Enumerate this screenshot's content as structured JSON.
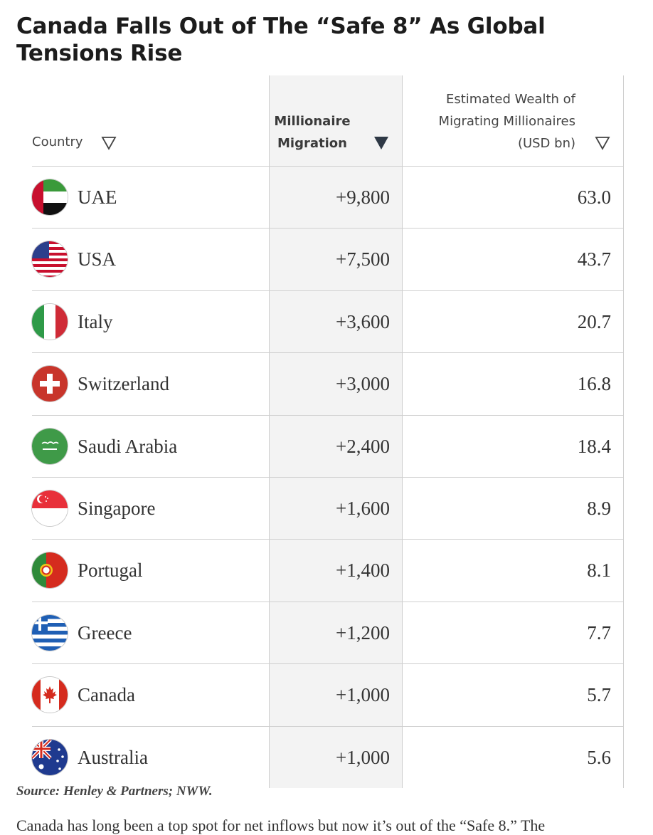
{
  "title": "Canada Falls Out of The “Safe 8” As Global Tensions Rise",
  "table": {
    "headers": {
      "country": "Country",
      "migration": "Millionaire Migration",
      "wealth": "Estimated Wealth of Migrating Millionaires (USD bn)"
    },
    "sort_icons": {
      "country": "▽",
      "migration": "▼",
      "wealth": "▽"
    },
    "rows": [
      {
        "country": "UAE",
        "migration": "+9,800",
        "wealth": "63.0",
        "flag": "uae-flag-icon"
      },
      {
        "country": "USA",
        "migration": "+7,500",
        "wealth": "43.7",
        "flag": "usa-flag-icon"
      },
      {
        "country": "Italy",
        "migration": "+3,600",
        "wealth": "20.7",
        "flag": "italy-flag-icon"
      },
      {
        "country": "Switzerland",
        "migration": "+3,000",
        "wealth": "16.8",
        "flag": "switzerland-flag-icon"
      },
      {
        "country": "Saudi Arabia",
        "migration": "+2,400",
        "wealth": "18.4",
        "flag": "saudi-arabia-flag-icon"
      },
      {
        "country": "Singapore",
        "migration": "+1,600",
        "wealth": "8.9",
        "flag": "singapore-flag-icon"
      },
      {
        "country": "Portugal",
        "migration": "+1,400",
        "wealth": "8.1",
        "flag": "portugal-flag-icon"
      },
      {
        "country": "Greece",
        "migration": "+1,200",
        "wealth": "7.7",
        "flag": "greece-flag-icon"
      },
      {
        "country": "Canada",
        "migration": "+1,000",
        "wealth": "5.7",
        "flag": "canada-flag-icon"
      },
      {
        "country": "Australia",
        "migration": "+1,000",
        "wealth": "5.6",
        "flag": "australia-flag-icon"
      }
    ]
  },
  "source": "Source: Henley & Partners; NWW.",
  "paragraph_fragment": "Canada has long been a top spot for net inflows but now it’s out of the “Safe 8.” The",
  "colors": {
    "header_highlight_bg": "#f3f3f3",
    "grid_line": "#cfcfcf",
    "text": "#333333"
  }
}
